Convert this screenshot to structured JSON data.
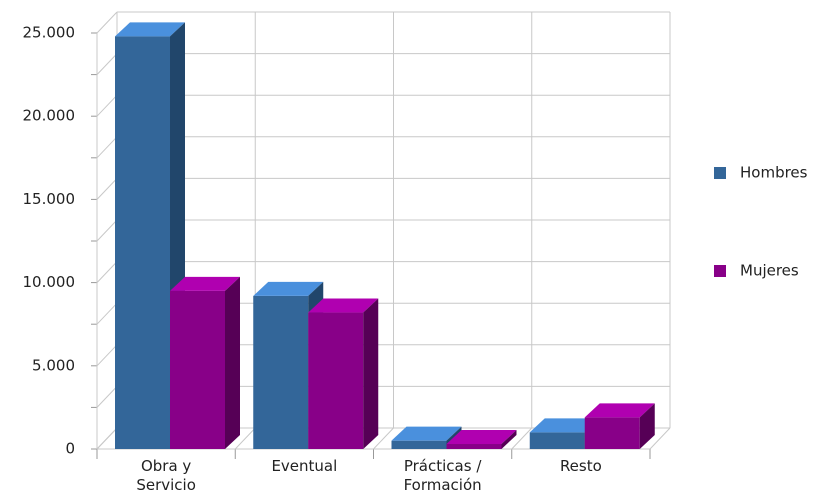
{
  "chart_data": {
    "type": "bar3d",
    "categories": [
      "Obra y Servicio",
      "Eventual",
      "Prácticas / Formación",
      "Resto"
    ],
    "series": [
      {
        "name": "Hombres",
        "color": "#336699",
        "top_color": "#4a90dd",
        "side_color": "#21466b",
        "values": [
          24800,
          9200,
          500,
          1000
        ]
      },
      {
        "name": "Mujeres",
        "color": "#880088",
        "top_color": "#b000b0",
        "side_color": "#560056",
        "values": [
          9500,
          8200,
          300,
          1900
        ]
      }
    ],
    "ylim": [
      0,
      25000
    ],
    "yticks": [
      {
        "value": 0,
        "label": "0"
      },
      {
        "value": 5000,
        "label": "5.000"
      },
      {
        "value": 10000,
        "label": "10.000"
      },
      {
        "value": 15000,
        "label": "15.000"
      },
      {
        "value": 20000,
        "label": "20.000"
      },
      {
        "value": 25000,
        "label": "25.000"
      }
    ],
    "y_minor_ticks": [
      2500,
      7500,
      12500,
      17500,
      22500
    ],
    "grid": true,
    "legend": "right"
  }
}
